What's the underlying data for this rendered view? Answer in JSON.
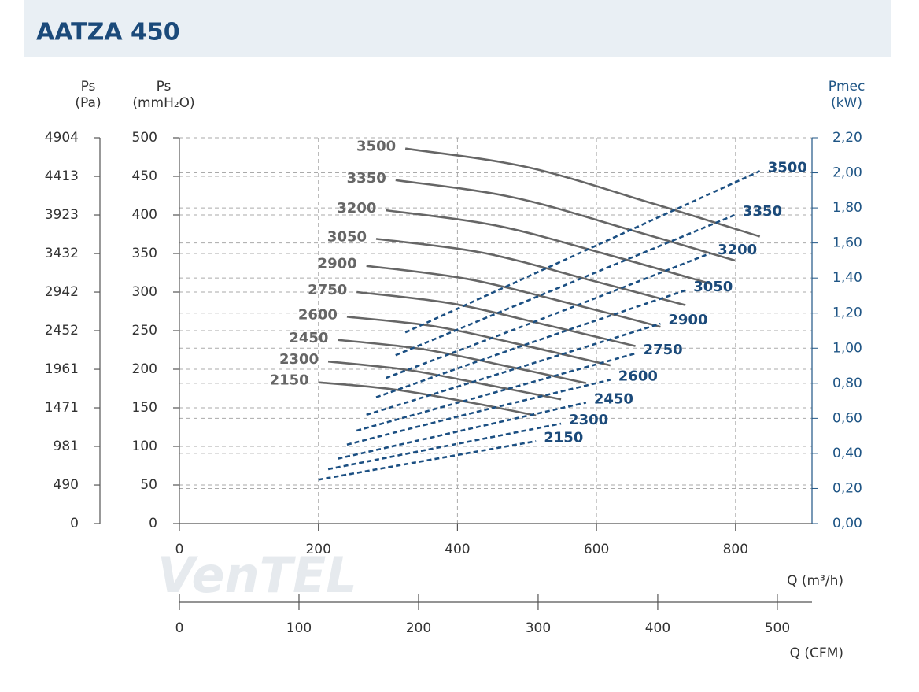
{
  "header": {
    "title": "AATZA 450"
  },
  "chart_data": {
    "type": "line",
    "watermark": "VenTEL",
    "y_pa_title": "Ps",
    "y_pa_unit": "(Pa)",
    "y_title": "Ps",
    "y_unit": "(mmH₂O)",
    "y2_title": "Pmec",
    "y2_unit": "(kW)",
    "x_label": "Q (m³/h)",
    "x2_label": "Q (CFM)",
    "xlim": [
      0,
      910
    ],
    "xticks": [
      0,
      200,
      400,
      600,
      800
    ],
    "x2lim": [
      0,
      529
    ],
    "x2ticks": [
      0,
      100,
      200,
      300,
      400,
      500
    ],
    "ylim": [
      0,
      500
    ],
    "yticks": [
      0,
      50,
      100,
      150,
      200,
      250,
      300,
      350,
      400,
      450,
      500
    ],
    "y_pa_lim": [
      0,
      4904
    ],
    "y_pa_ticks": [
      0,
      490,
      981,
      1471,
      1961,
      2452,
      2942,
      3432,
      3923,
      4413,
      4904
    ],
    "y2lim": [
      0,
      2.2
    ],
    "y2ticks": [
      {
        "value": 0,
        "label": "0,00"
      },
      {
        "value": 0.2,
        "label": "0,20"
      },
      {
        "value": 0.4,
        "label": "0,40"
      },
      {
        "value": 0.6,
        "label": "0,60"
      },
      {
        "value": 0.8,
        "label": "0,80"
      },
      {
        "value": 1.0,
        "label": "1,00"
      },
      {
        "value": 1.2,
        "label": "1,20"
      },
      {
        "value": 1.4,
        "label": "1,40"
      },
      {
        "value": 1.6,
        "label": "1,60"
      },
      {
        "value": 1.8,
        "label": "1,80"
      },
      {
        "value": 2.0,
        "label": "2,00"
      },
      {
        "value": 2.2,
        "label": "2,20"
      }
    ],
    "grid": true,
    "series": [
      {
        "name": "3500",
        "color": "#666666",
        "x": [
          325,
          500,
          680,
          835
        ],
        "values": [
          486,
          462,
          415,
          372
        ]
      },
      {
        "name": "3350",
        "color": "#666666",
        "x": [
          311,
          479,
          651,
          799
        ],
        "values": [
          445,
          423,
          380,
          341
        ]
      },
      {
        "name": "3200",
        "color": "#666666",
        "x": [
          297,
          457,
          622,
          763
        ],
        "values": [
          406,
          386,
          347,
          311
        ]
      },
      {
        "name": "3050",
        "color": "#666666",
        "x": [
          283,
          436,
          593,
          728
        ],
        "values": [
          369,
          351,
          315,
          283
        ]
      },
      {
        "name": "2900",
        "color": "#666666",
        "x": [
          269,
          414,
          563,
          692
        ],
        "values": [
          334,
          317,
          285,
          255
        ]
      },
      {
        "name": "2750",
        "color": "#666666",
        "x": [
          255,
          393,
          534,
          656
        ],
        "values": [
          300,
          285,
          256,
          230
        ]
      },
      {
        "name": "2600",
        "color": "#666666",
        "x": [
          241,
          371,
          505,
          620
        ],
        "values": [
          268,
          255,
          229,
          205
        ]
      },
      {
        "name": "2450",
        "color": "#666666",
        "x": [
          228,
          350,
          476,
          585
        ],
        "values": [
          238,
          226,
          203,
          182
        ]
      },
      {
        "name": "2300",
        "color": "#666666",
        "x": [
          214,
          329,
          447,
          549
        ],
        "values": [
          210,
          199,
          179,
          161
        ]
      },
      {
        "name": "2150",
        "color": "#666666",
        "x": [
          200,
          307,
          418,
          513
        ],
        "values": [
          183,
          174,
          157,
          140
        ]
      },
      {
        "name": "3500",
        "color": "#1b4f82",
        "axis": "y2",
        "dashed": true,
        "x": [
          325,
          580,
          835
        ],
        "values": [
          1.09,
          1.55,
          2.01
        ]
      },
      {
        "name": "3350",
        "color": "#1b4f82",
        "axis": "y2",
        "dashed": true,
        "x": [
          311,
          555,
          799
        ],
        "values": [
          0.96,
          1.36,
          1.76
        ]
      },
      {
        "name": "3200",
        "color": "#1b4f82",
        "axis": "y2",
        "dashed": true,
        "x": [
          297,
          530,
          763
        ],
        "values": [
          0.83,
          1.18,
          1.54
        ]
      },
      {
        "name": "3050",
        "color": "#1b4f82",
        "axis": "y2",
        "dashed": true,
        "x": [
          283,
          505,
          728
        ],
        "values": [
          0.72,
          1.03,
          1.33
        ]
      },
      {
        "name": "2900",
        "color": "#1b4f82",
        "axis": "y2",
        "dashed": true,
        "x": [
          269,
          481,
          692
        ],
        "values": [
          0.62,
          0.88,
          1.14
        ]
      },
      {
        "name": "2750",
        "color": "#1b4f82",
        "axis": "y2",
        "dashed": true,
        "x": [
          255,
          456,
          656
        ],
        "values": [
          0.53,
          0.75,
          0.97
        ]
      },
      {
        "name": "2600",
        "color": "#1b4f82",
        "axis": "y2",
        "dashed": true,
        "x": [
          241,
          431,
          620
        ],
        "values": [
          0.45,
          0.64,
          0.82
        ]
      },
      {
        "name": "2450",
        "color": "#1b4f82",
        "axis": "y2",
        "dashed": true,
        "x": [
          228,
          406,
          585
        ],
        "values": [
          0.37,
          0.53,
          0.69
        ]
      },
      {
        "name": "2300",
        "color": "#1b4f82",
        "axis": "y2",
        "dashed": true,
        "x": [
          214,
          381,
          549
        ],
        "values": [
          0.31,
          0.44,
          0.57
        ]
      },
      {
        "name": "2150",
        "color": "#1b4f82",
        "axis": "y2",
        "dashed": true,
        "x": [
          200,
          356,
          513
        ],
        "values": [
          0.25,
          0.36,
          0.47
        ]
      }
    ]
  }
}
